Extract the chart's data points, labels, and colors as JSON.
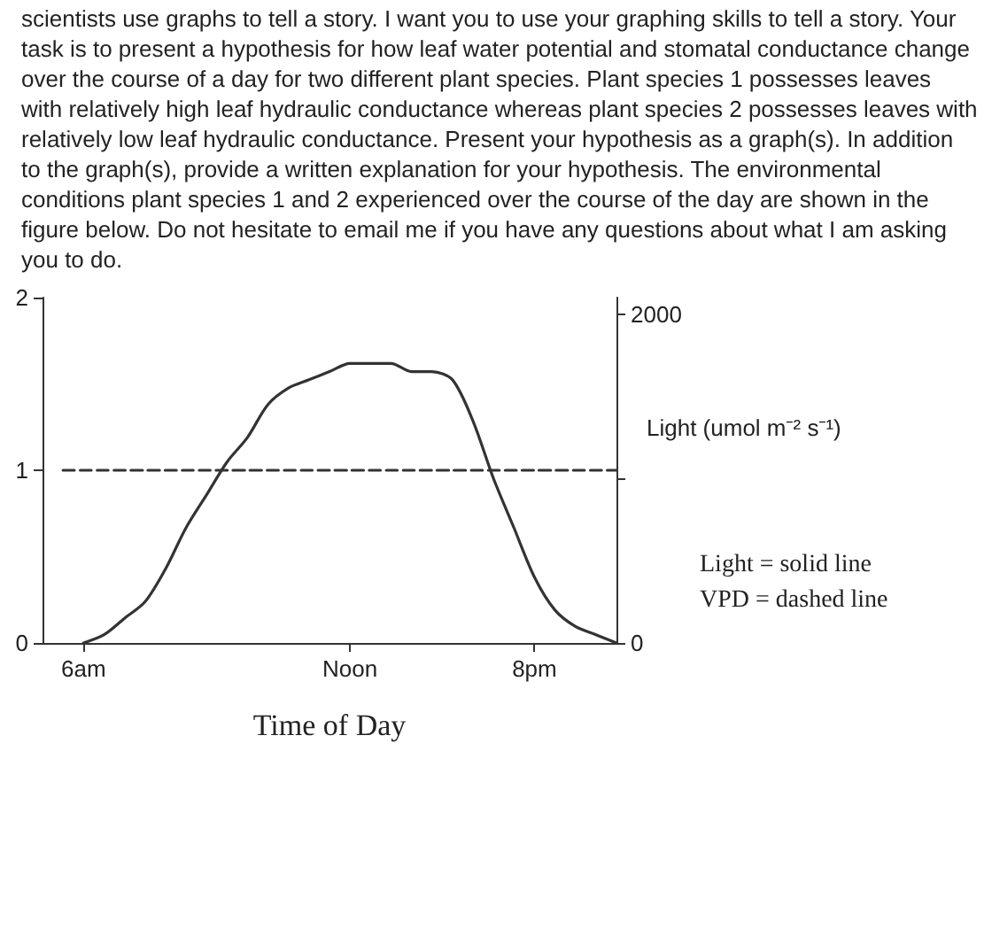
{
  "chart_data": {
    "type": "line",
    "subtitle": "scientists use graphs to tell a story. I want you to use your graphing skills to tell a story.  Your task is to present a hypothesis for how leaf water potential and stomatal conductance change over the course of a day for two different plant species. Plant species 1 possesses leaves with relatively high leaf hydraulic conductance whereas plant species 2 possesses leaves with relatively low leaf hydraulic conductance. Present your hypothesis as a graph(s). In addition to the graph(s), provide a written explanation for your hypothesis.  The environmental conditions plant species 1 and 2 experienced over the course of the day are shown in the figure below.  Do not hesitate to email me if you have any questions about what I am asking you to do.",
    "xlabel": "Time of Day",
    "y2label": "Light (umol m⁻² s⁻¹)",
    "annotations": [
      "Light = solid line",
      "VPD = dashed line"
    ],
    "categories": [
      null,
      null,
      "6am",
      null,
      null,
      null,
      null,
      null,
      null,
      null,
      null,
      null,
      null,
      null,
      null,
      "Noon",
      null,
      null,
      null,
      null,
      null,
      null,
      null,
      null,
      "8pm",
      null,
      null,
      null,
      null
    ],
    "ylim": [
      0,
      2
    ],
    "yticks": [
      0,
      1,
      2
    ],
    "y2lim": [
      0,
      2100
    ],
    "y2ticks": [
      0,
      {
        "value": 1000,
        "label": null
      },
      2000
    ],
    "grid": false,
    "marker": "none",
    "series": [
      {
        "color": "#333333",
        "axis": "y2",
        "line_style": "solid",
        "values": [
          null,
          null,
          0,
          50,
          150,
          250,
          450,
          700,
          900,
          1100,
          1250,
          1450,
          1550,
          1600,
          1650,
          1700,
          1700,
          1700,
          1650,
          1650,
          1600,
          1350,
          1000,
          700,
          400,
          200,
          100,
          50,
          0
        ]
      },
      {
        "color": "#333333",
        "line_style": "dashed",
        "values": [
          null,
          1,
          1,
          1,
          1,
          1,
          1,
          1,
          1,
          1,
          1,
          1,
          1,
          1,
          1,
          1,
          1,
          1,
          1,
          1,
          1,
          1,
          1,
          1,
          1,
          1,
          1,
          1,
          1
        ]
      }
    ]
  }
}
